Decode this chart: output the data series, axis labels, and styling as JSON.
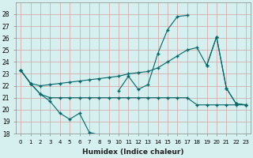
{
  "xlabel": "Humidex (Indice chaleur)",
  "bg_color": "#d6efef",
  "grid_color": "#c8e8e8",
  "line_color": "#006666",
  "xlim": [
    -0.5,
    23.5
  ],
  "ylim": [
    18,
    29
  ],
  "yticks": [
    18,
    19,
    20,
    21,
    22,
    23,
    24,
    25,
    26,
    27,
    28
  ],
  "xticks": [
    0,
    1,
    2,
    3,
    4,
    5,
    6,
    7,
    8,
    9,
    10,
    11,
    12,
    13,
    14,
    15,
    16,
    17,
    18,
    19,
    20,
    21,
    22,
    23
  ],
  "series": [
    {
      "x": [
        0,
        1,
        2,
        3,
        4,
        5,
        6,
        7,
        8,
        9,
        10,
        11,
        12,
        13,
        14,
        15,
        16,
        17,
        18,
        19,
        20,
        21,
        22,
        23
      ],
      "y": [
        23.3,
        22.2,
        21.3,
        20.7,
        19.7,
        19.2,
        19.7,
        18.1,
        17.9,
        null,
        21.6,
        22.8,
        21.7,
        22.1,
        24.7,
        26.7,
        27.8,
        27.9,
        null,
        23.7,
        26.1,
        21.8,
        20.5,
        20.4
      ]
    },
    {
      "x": [
        0,
        1,
        2,
        3,
        4,
        5,
        6,
        7,
        8,
        9,
        10,
        11,
        12,
        13,
        14,
        15,
        16,
        17,
        18,
        19,
        20,
        21,
        22,
        23
      ],
      "y": [
        23.3,
        22.2,
        21.3,
        21.0,
        21.0,
        21.0,
        21.0,
        21.0,
        21.0,
        21.0,
        21.0,
        21.0,
        21.0,
        21.0,
        21.0,
        21.0,
        21.0,
        21.0,
        20.4,
        20.4,
        20.4,
        20.4,
        20.4,
        20.4
      ]
    },
    {
      "x": [
        0,
        1,
        2,
        3,
        4,
        5,
        6,
        7,
        8,
        9,
        10,
        11,
        12,
        13,
        14,
        15,
        16,
        17,
        18,
        19,
        20,
        21,
        22,
        23
      ],
      "y": [
        23.3,
        22.2,
        22.0,
        22.1,
        22.2,
        22.3,
        22.4,
        22.5,
        22.6,
        22.7,
        22.8,
        23.0,
        23.1,
        23.2,
        23.5,
        24.0,
        24.5,
        25.0,
        25.2,
        23.7,
        26.1,
        21.8,
        20.5,
        20.4
      ]
    }
  ]
}
